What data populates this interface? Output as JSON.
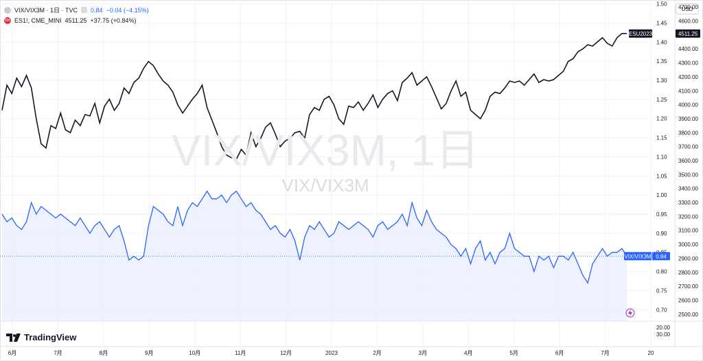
{
  "legend": {
    "vix_title": "VIX/VIX3M · 1日 · TVC",
    "vix_value": "0.84",
    "vix_change": "−0.04 (−4.15%)",
    "es_title": "ES1!, CME_MINI",
    "es_value": "4511.25",
    "es_change": "+37.75 (+0.84%)",
    "es_icon_text": "500"
  },
  "currency_label": "USD",
  "watermark": {
    "line1": "VIX/VIX3M, 1日",
    "line2": "VIX/VIX3M"
  },
  "brand": "TradingView",
  "colors": {
    "es_line": "#131722",
    "vix_line": "#2962ff",
    "vix_fill": "#e8eefe",
    "es_badge": "#131722",
    "vix_badge": "#2962ff",
    "es_icon": "#e0303e"
  },
  "chart_data": [
    {
      "type": "line",
      "series": [
        {
          "name": "ES1!, CME_MINI",
          "axis": "right-price",
          "values": [
            3960,
            4140,
            4080,
            4190,
            4130,
            4210,
            4120,
            3900,
            3720,
            3690,
            3850,
            3830,
            3940,
            3820,
            3800,
            3890,
            3850,
            3930,
            3920,
            4010,
            3870,
            3990,
            4040,
            3960,
            4010,
            4120,
            4080,
            4160,
            4190,
            4260,
            4310,
            4280,
            4220,
            4170,
            4140,
            4090,
            4000,
            3940,
            3990,
            4040,
            4080,
            4140,
            3980,
            3890,
            3800,
            3700,
            3640,
            3620,
            3610,
            3680,
            3640,
            3800,
            3700,
            3760,
            3840,
            3870,
            3790,
            3700,
            3740,
            3760,
            3800,
            3810,
            3760,
            3930,
            3980,
            3960,
            4040,
            4060,
            4000,
            3900,
            3860,
            3990,
            3980,
            4020,
            3960,
            4010,
            4070,
            3980,
            4040,
            4080,
            4100,
            4030,
            4160,
            4190,
            4230,
            4140,
            4170,
            4200,
            4130,
            4050,
            3970,
            4010,
            4100,
            4170,
            4060,
            4090,
            3960,
            3930,
            3900,
            3960,
            4060,
            4090,
            4080,
            4120,
            4170,
            4160,
            4170,
            4140,
            4180,
            4220,
            4160,
            4180,
            4170,
            4180,
            4210,
            4240,
            4310,
            4330,
            4380,
            4400,
            4430,
            4420,
            4450,
            4480,
            4440,
            4420,
            4480,
            4510,
            4510
          ]
        },
        {
          "name": "VIX/VIX3M · 1日 · TVC",
          "axis": "left-ratio",
          "values": [
            0.95,
            0.93,
            0.94,
            0.92,
            0.91,
            0.93,
            0.98,
            0.95,
            0.97,
            0.96,
            0.95,
            0.94,
            0.95,
            0.94,
            0.93,
            0.92,
            0.94,
            0.92,
            0.9,
            0.92,
            0.93,
            0.91,
            0.89,
            0.91,
            0.92,
            0.88,
            0.83,
            0.84,
            0.83,
            0.84,
            0.92,
            0.97,
            0.96,
            0.95,
            0.93,
            0.92,
            0.97,
            0.92,
            0.96,
            0.98,
            0.97,
            0.99,
            1.01,
            0.99,
            0.99,
            1.0,
            0.98,
            1.0,
            1.01,
            0.99,
            0.97,
            0.98,
            0.96,
            0.95,
            0.93,
            0.91,
            0.92,
            0.9,
            0.89,
            0.91,
            0.88,
            0.83,
            0.89,
            0.92,
            0.91,
            0.93,
            0.91,
            0.89,
            0.9,
            0.93,
            0.92,
            0.91,
            0.92,
            0.93,
            0.92,
            0.91,
            0.89,
            0.92,
            0.93,
            0.91,
            0.92,
            0.93,
            0.95,
            0.92,
            0.98,
            0.94,
            0.92,
            0.96,
            0.93,
            0.91,
            0.9,
            0.89,
            0.87,
            0.86,
            0.84,
            0.86,
            0.82,
            0.86,
            0.88,
            0.83,
            0.85,
            0.82,
            0.85,
            0.86,
            0.9,
            0.86,
            0.85,
            0.84,
            0.84,
            0.8,
            0.84,
            0.83,
            0.84,
            0.81,
            0.84,
            0.84,
            0.83,
            0.85,
            0.82,
            0.79,
            0.77,
            0.82,
            0.84,
            0.86,
            0.84,
            0.85,
            0.85,
            0.86,
            0.84
          ]
        }
      ],
      "x_tick_labels": [
        "6月",
        "7月",
        "8月",
        "9月",
        "10月",
        "11月",
        "12月",
        "2023",
        "2月",
        "3月",
        "4月",
        "5月",
        "6月",
        "7月",
        "20"
      ],
      "price_axis": {
        "ticks": [
          "4700.00",
          "4600.00",
          "4500.00",
          "4400.00",
          "4300.00",
          "4200.00",
          "4100.00",
          "4000.00",
          "3900.00",
          "3800.00",
          "3700.00",
          "3600.00",
          "3500.00",
          "3400.00",
          "3300.00",
          "3200.00",
          "3100.00",
          "3000.00",
          "2900.00",
          "2800.00",
          "2700.00",
          "2600.00",
          "2500.00"
        ],
        "range": [
          2450,
          4750
        ]
      },
      "ratio_axis": {
        "ticks": [
          "1.50",
          "1.45",
          "1.40",
          "1.35",
          "1.30",
          "1.25",
          "1.20",
          "1.15",
          "1.10",
          "1.05",
          "1.00",
          "0.95",
          "0.90",
          "0.85",
          "0.80",
          "0.75",
          "0.70"
        ],
        "range": [
          0.67,
          1.51
        ]
      },
      "lower_pane_ticks": [
        "20.00",
        "30.00"
      ],
      "last_labels": [
        {
          "name": "ESU2023",
          "value": "4511.25"
        },
        {
          "name": "VIX/VIX3M",
          "value": "0.84"
        }
      ],
      "current_ratio": 0.84
    }
  ]
}
